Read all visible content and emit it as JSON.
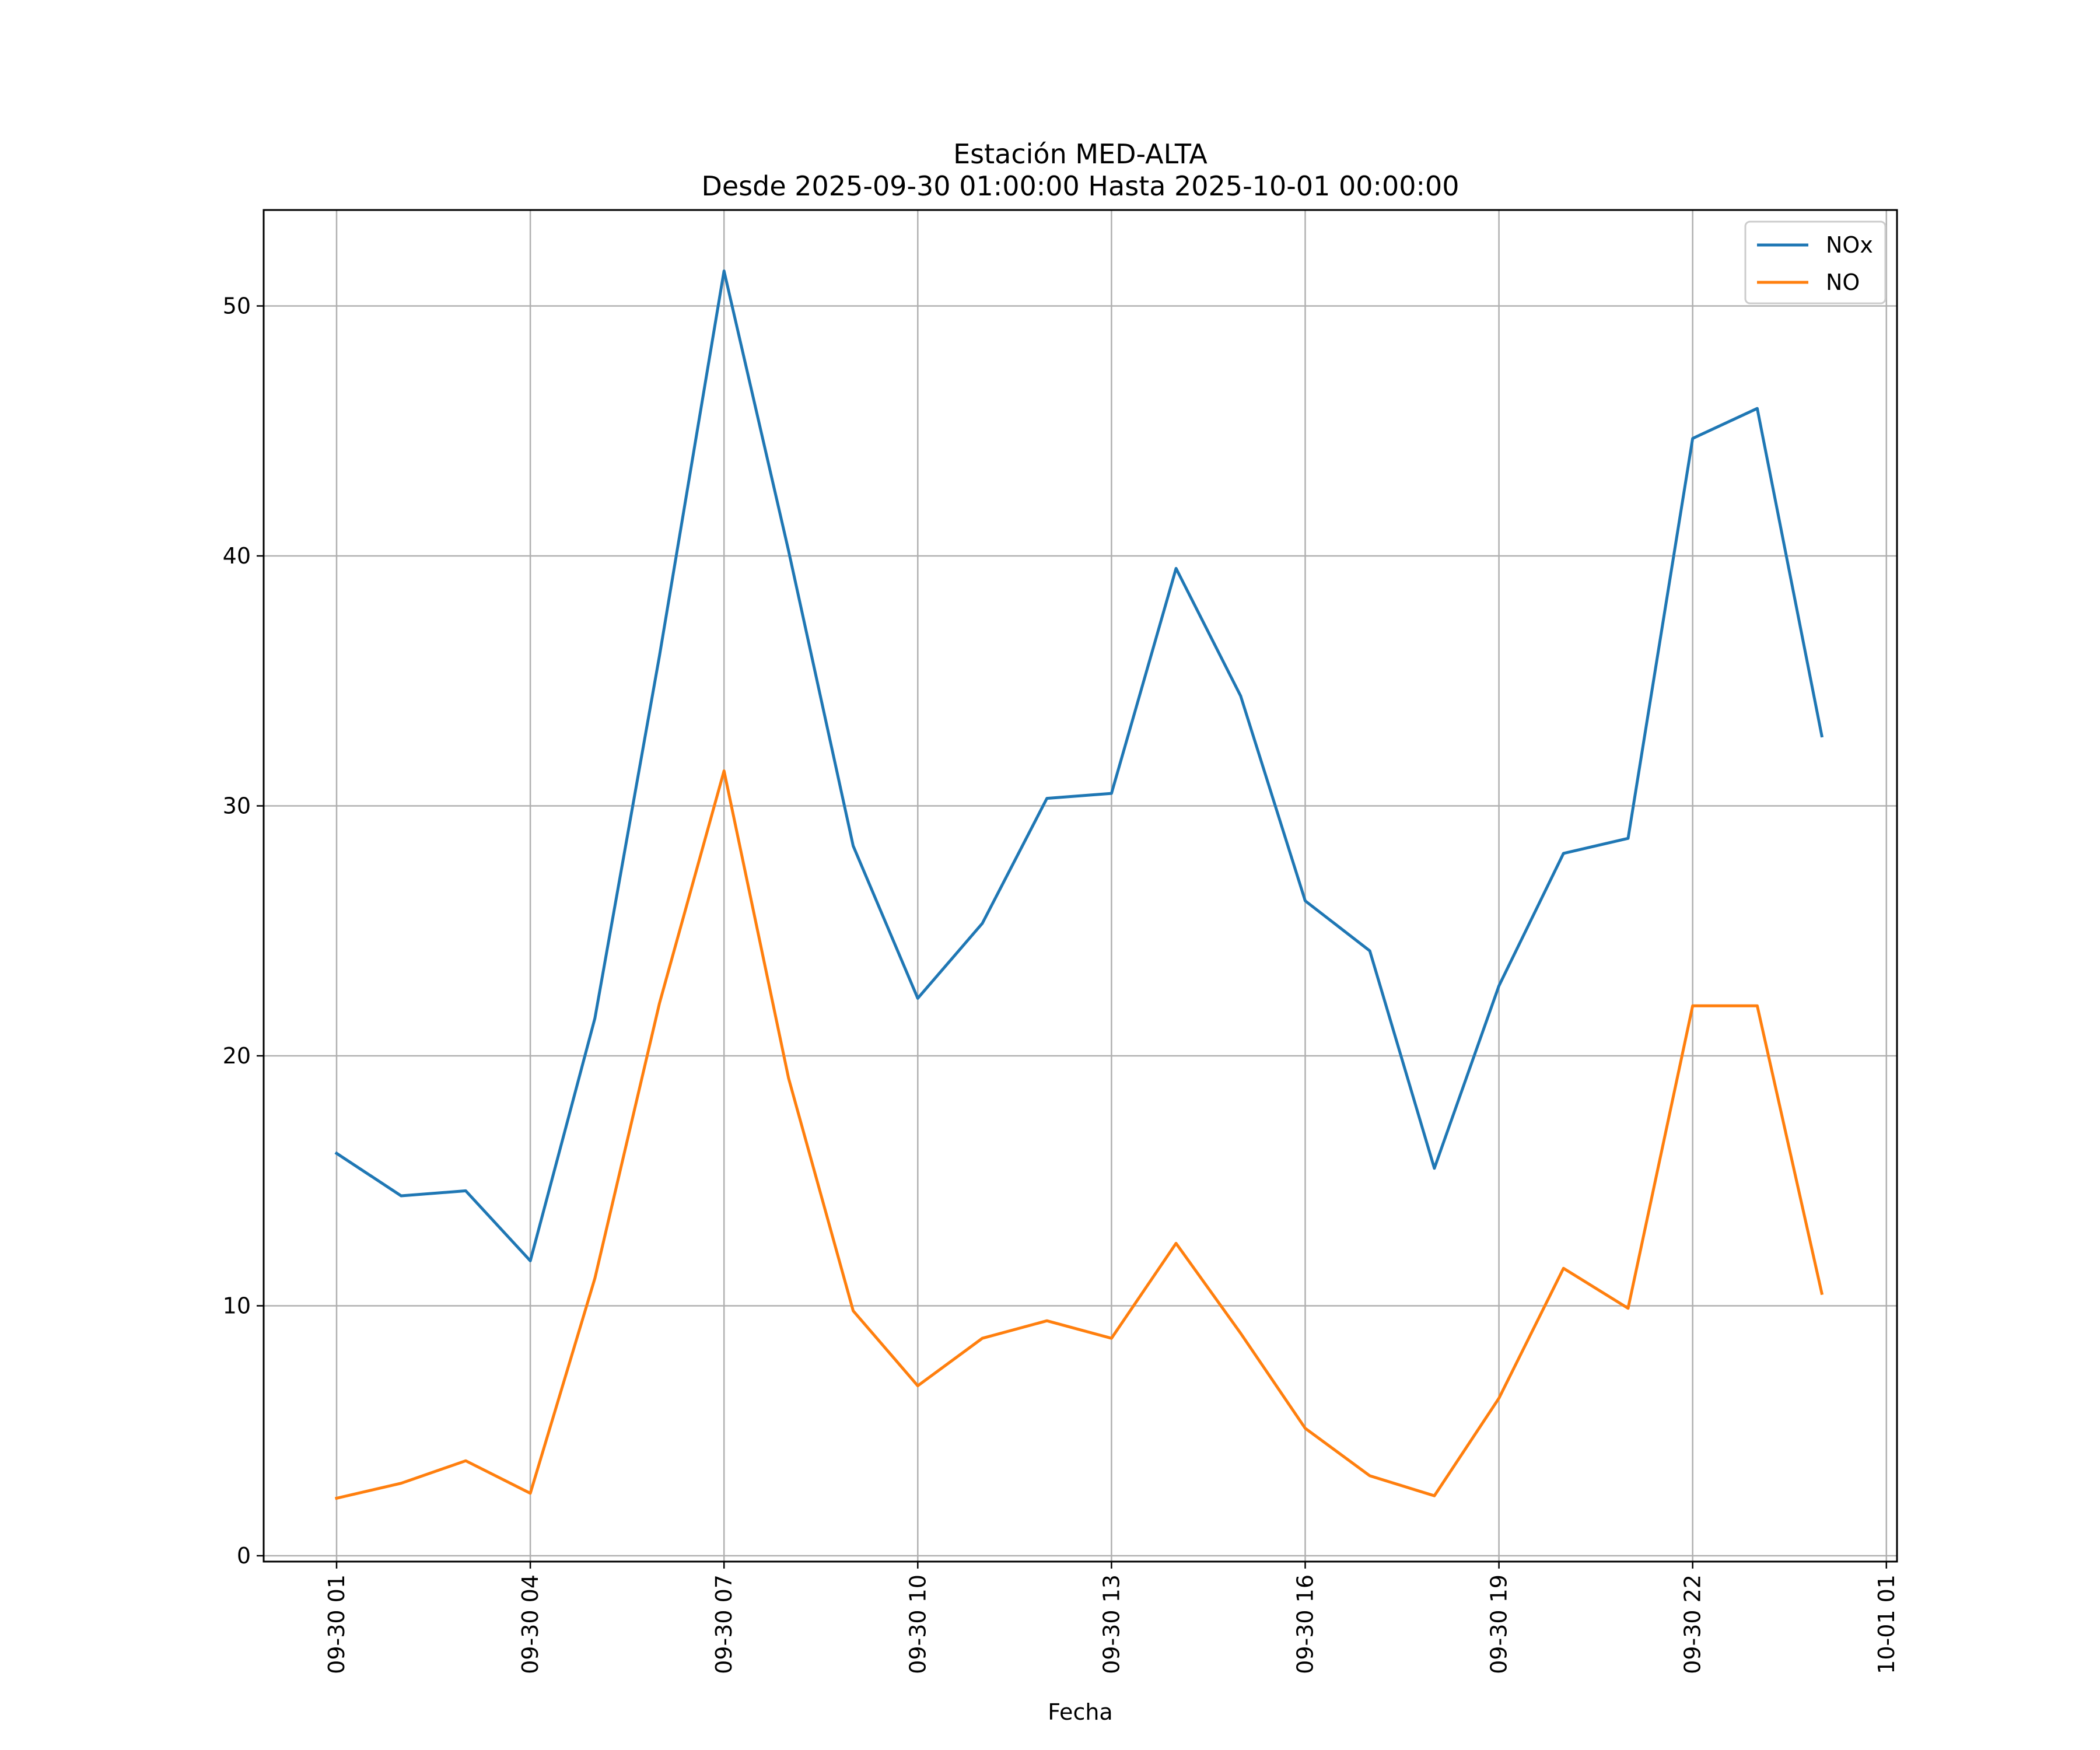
{
  "chart_data": {
    "type": "line",
    "title": "Estación MED-ALTA",
    "subtitle": "Desde 2025-09-30 01:00:00 Hasta 2025-10-01 00:00:00",
    "xlabel": "Fecha",
    "ylabel": "",
    "x": [
      "2025-09-30 01:00",
      "2025-09-30 02:00",
      "2025-09-30 03:00",
      "2025-09-30 04:00",
      "2025-09-30 05:00",
      "2025-09-30 06:00",
      "2025-09-30 07:00",
      "2025-09-30 08:00",
      "2025-09-30 09:00",
      "2025-09-30 10:00",
      "2025-09-30 11:00",
      "2025-09-30 12:00",
      "2025-09-30 13:00",
      "2025-09-30 14:00",
      "2025-09-30 15:00",
      "2025-09-30 16:00",
      "2025-09-30 17:00",
      "2025-09-30 18:00",
      "2025-09-30 19:00",
      "2025-09-30 20:00",
      "2025-09-30 21:00",
      "2025-09-30 22:00",
      "2025-09-30 23:00",
      "2025-10-01 00:00"
    ],
    "series": [
      {
        "name": "NOx",
        "color": "#1f77b4",
        "values": [
          16.1,
          14.4,
          14.6,
          11.8,
          21.5,
          36.0,
          51.4,
          40.2,
          28.4,
          22.3,
          25.3,
          30.3,
          30.5,
          39.5,
          34.4,
          26.2,
          24.2,
          15.5,
          22.8,
          28.1,
          28.7,
          44.7,
          45.9,
          32.8
        ]
      },
      {
        "name": "NO",
        "color": "#ff7f0e",
        "values": [
          2.3,
          2.9,
          3.8,
          2.5,
          11.1,
          22.1,
          31.4,
          19.1,
          9.8,
          6.8,
          8.7,
          9.4,
          8.7,
          12.5,
          8.9,
          5.1,
          3.2,
          2.4,
          6.3,
          11.5,
          9.9,
          22.0,
          22.0,
          10.5
        ]
      }
    ],
    "xticks": [
      "09-30 01",
      "09-30 04",
      "09-30 07",
      "09-30 10",
      "09-30 13",
      "09-30 16",
      "09-30 19",
      "09-30 22",
      "10-01 01"
    ],
    "yticks": [
      0,
      10,
      20,
      30,
      40,
      50
    ],
    "ylim": [
      -0.2,
      53.9
    ],
    "xlim": [
      "2025-09-30 -0.15",
      "2025-10-01 01:06"
    ],
    "grid": true,
    "legend_position": "top-right"
  }
}
